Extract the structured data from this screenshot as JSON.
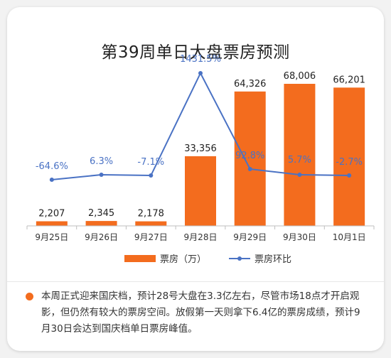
{
  "title": "第39周单日大盘票房预测",
  "legend": {
    "bar": "票房（万）",
    "line": "票房环比"
  },
  "colors": {
    "bar": "#f36c1e",
    "line": "#4a72c4",
    "accent": "#f36c1e"
  },
  "note": "本周正式迎来国庆档，预计28号大盘在3.3亿左右，尽管市场18点才开启观影，但仍然有较大的票房空间。放假第一天则拿下6.4亿的票房成绩，预计9月30日会达到国庆档单日票房峰值。",
  "chart_data": {
    "type": "bar",
    "title": "第39周单日大盘票房预测",
    "categories": [
      "9月25日",
      "9月26日",
      "9月27日",
      "9月28日",
      "9月29日",
      "9月30日",
      "10月1日"
    ],
    "series": [
      {
        "name": "票房（万）",
        "type": "bar",
        "values": [
          2207,
          2345,
          2178,
          33356,
          64326,
          68006,
          66201
        ],
        "labels": [
          "2,207",
          "2,345",
          "2,178",
          "33,356",
          "64,326",
          "68,006",
          "66,201"
        ]
      },
      {
        "name": "票房环比",
        "type": "line",
        "values": [
          -64.6,
          6.3,
          -7.1,
          1431.5,
          92.8,
          5.7,
          -2.7
        ],
        "labels": [
          "-64.6%",
          "6.3%",
          "-7.1%",
          "1431.5%",
          "92.8%",
          "5.7%",
          "-2.7%"
        ]
      }
    ],
    "legend": "bottom",
    "grid": false
  }
}
